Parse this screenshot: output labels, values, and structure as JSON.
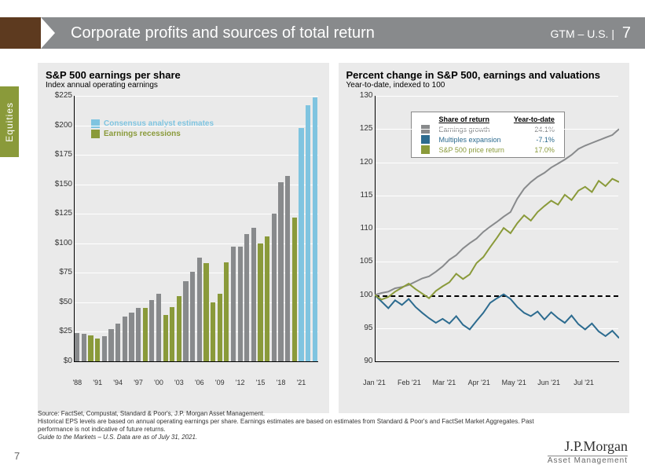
{
  "header": {
    "title": "Corporate profits and sources of total return",
    "right_prefix": "GTM – U.S.",
    "page": "7"
  },
  "side_tab": "Equities",
  "left_chart": {
    "title": "S&P 500 earnings per share",
    "subtitle": "Index annual operating earnings",
    "type": "bar",
    "ylim": [
      0,
      225
    ],
    "ytick_step": 25,
    "y_prefix": "$",
    "x_labels": [
      "'88",
      "'91",
      "'94",
      "'97",
      "'00",
      "'03",
      "'06",
      "'09",
      "'12",
      "'15",
      "'18",
      "'21"
    ],
    "x_label_step": 3,
    "colors": {
      "normal": "#888a8c",
      "recession": "#8a9a3a",
      "estimate": "#7fc4e0"
    },
    "legend": [
      {
        "label": "Consensus analyst estimates",
        "color": "#7fc4e0"
      },
      {
        "label": "Earnings recessions",
        "color": "#8a9a3a"
      }
    ],
    "bars": [
      {
        "y": 1988,
        "v": 24,
        "t": "normal"
      },
      {
        "y": 1989,
        "v": 23,
        "t": "normal"
      },
      {
        "y": 1990,
        "v": 22,
        "t": "recession"
      },
      {
        "y": 1991,
        "v": 19,
        "t": "recession"
      },
      {
        "y": 1992,
        "v": 21,
        "t": "normal"
      },
      {
        "y": 1993,
        "v": 27,
        "t": "normal"
      },
      {
        "y": 1994,
        "v": 32,
        "t": "normal"
      },
      {
        "y": 1995,
        "v": 38,
        "t": "normal"
      },
      {
        "y": 1996,
        "v": 41,
        "t": "normal"
      },
      {
        "y": 1997,
        "v": 45,
        "t": "normal"
      },
      {
        "y": 1998,
        "v": 45,
        "t": "recession"
      },
      {
        "y": 1999,
        "v": 52,
        "t": "normal"
      },
      {
        "y": 2000,
        "v": 57,
        "t": "normal"
      },
      {
        "y": 2001,
        "v": 39,
        "t": "recession"
      },
      {
        "y": 2002,
        "v": 46,
        "t": "recession"
      },
      {
        "y": 2003,
        "v": 55,
        "t": "recession"
      },
      {
        "y": 2004,
        "v": 68,
        "t": "normal"
      },
      {
        "y": 2005,
        "v": 76,
        "t": "normal"
      },
      {
        "y": 2006,
        "v": 88,
        "t": "normal"
      },
      {
        "y": 2007,
        "v": 83,
        "t": "recession"
      },
      {
        "y": 2008,
        "v": 50,
        "t": "recession"
      },
      {
        "y": 2009,
        "v": 57,
        "t": "recession"
      },
      {
        "y": 2010,
        "v": 84,
        "t": "recession"
      },
      {
        "y": 2011,
        "v": 97,
        "t": "normal"
      },
      {
        "y": 2012,
        "v": 97,
        "t": "normal"
      },
      {
        "y": 2013,
        "v": 108,
        "t": "normal"
      },
      {
        "y": 2014,
        "v": 113,
        "t": "normal"
      },
      {
        "y": 2015,
        "v": 100,
        "t": "recession"
      },
      {
        "y": 2016,
        "v": 106,
        "t": "recession"
      },
      {
        "y": 2017,
        "v": 125,
        "t": "normal"
      },
      {
        "y": 2018,
        "v": 152,
        "t": "normal"
      },
      {
        "y": 2019,
        "v": 157,
        "t": "normal"
      },
      {
        "y": 2020,
        "v": 122,
        "t": "recession"
      },
      {
        "y": 2021,
        "v": 198,
        "t": "estimate"
      },
      {
        "y": 2022,
        "v": 217,
        "t": "estimate"
      },
      {
        "y": 2023,
        "v": 224,
        "t": "estimate"
      }
    ]
  },
  "right_chart": {
    "title": "Percent change in S&P 500, earnings and valuations",
    "subtitle": "Year-to-date, indexed to 100",
    "type": "line",
    "ylim": [
      90,
      130
    ],
    "ytick_step": 5,
    "x_labels": [
      "Jan '21",
      "Feb '21",
      "Mar '21",
      "Apr '21",
      "May '21",
      "Jun '21",
      "Jul '21"
    ],
    "reference_line": 100,
    "legend_table": {
      "headers": [
        "Share of return",
        "Year-to-date"
      ],
      "rows": [
        {
          "swatch": "#888a8c",
          "label": "Earnings growth",
          "value": "24.1%",
          "color": "#888a8c"
        },
        {
          "swatch": "#2c6b8f",
          "label": "Multiples expansion",
          "value": "-7.1%",
          "color": "#2c6b8f"
        },
        {
          "swatch": "#8a9a3a",
          "label": "S&P 500 price return",
          "value": "17.0%",
          "color": "#8a9a3a"
        }
      ]
    },
    "series": {
      "earnings_growth": {
        "color": "#888a8c",
        "width": 2,
        "points": [
          100,
          100.3,
          100.5,
          101,
          101.2,
          101.5,
          102,
          102.5,
          102.8,
          103.5,
          104.3,
          105.3,
          106,
          107,
          107.8,
          108.5,
          109.5,
          110.3,
          111.0,
          111.8,
          112.5,
          114.5,
          116,
          117,
          117.8,
          118.4,
          119.2,
          119.8,
          120.4,
          121.1,
          122.0,
          122.5,
          122.9,
          123.3,
          123.7,
          124.1,
          125.0
        ]
      },
      "multiples": {
        "color": "#2c6b8f",
        "width": 2,
        "points": [
          100,
          99,
          98,
          99.2,
          98.5,
          99.4,
          98.2,
          97.3,
          96.5,
          95.8,
          96.4,
          95.7,
          96.8,
          95.5,
          94.8,
          96.1,
          97.3,
          98.8,
          99.5,
          100.1,
          99.4,
          98.2,
          97.3,
          96.8,
          97.5,
          96.3,
          97.4,
          96.5,
          95.8,
          96.9,
          95.6,
          94.8,
          95.7,
          94.5,
          93.8,
          94.6,
          93.5
        ]
      },
      "price": {
        "color": "#8a9a3a",
        "width": 2,
        "points": [
          100,
          99.3,
          99.7,
          100.5,
          101.1,
          101.7,
          100.9,
          100.2,
          99.5,
          100.6,
          101.3,
          101.9,
          103.2,
          102.4,
          103.1,
          104.8,
          105.7,
          107.2,
          108.6,
          110.1,
          109.3,
          110.8,
          112.0,
          111.2,
          112.5,
          113.4,
          114.2,
          113.6,
          115.1,
          114.3,
          115.7,
          116.3,
          115.5,
          117.2,
          116.4,
          117.5,
          117.0
        ]
      }
    }
  },
  "footnote": {
    "l1": "Source: FactSet, Compustat, Standard & Poor's, J.P. Morgan Asset Management.",
    "l2": "Historical EPS levels are based on annual operating earnings per share. Earnings estimates are based on estimates from Standard & Poor's and FactSet Market Aggregates. Past performance is not indicative of future returns.",
    "l3": "Guide to the Markets – U.S. Data are as of July 31, 2021."
  },
  "page_num": "7",
  "logo": {
    "l1": "J.P.Morgan",
    "l2": "Asset Management"
  }
}
